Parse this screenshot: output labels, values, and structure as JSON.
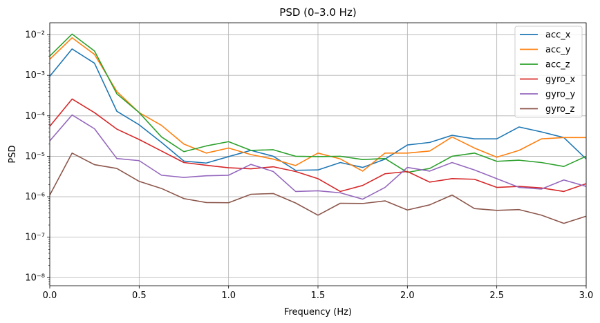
{
  "chart_data": {
    "type": "line",
    "title": "PSD (0–3.0 Hz)",
    "xlabel": "Frequency (Hz)",
    "ylabel": "PSD",
    "xlim": [
      0,
      3.0
    ],
    "ylim_log10": [
      -8.2,
      -1.7
    ],
    "yscale": "log",
    "grid": true,
    "legend_position": "top-right",
    "x_ticks": [
      {
        "value": 0.0,
        "label": "0.0"
      },
      {
        "value": 0.5,
        "label": "0.5"
      },
      {
        "value": 1.0,
        "label": "1.0"
      },
      {
        "value": 1.5,
        "label": "1.5"
      },
      {
        "value": 2.0,
        "label": "2.0"
      },
      {
        "value": 2.5,
        "label": "2.5"
      },
      {
        "value": 3.0,
        "label": "3.0"
      }
    ],
    "y_ticks": [
      {
        "exp": -8,
        "label": "10⁻⁸"
      },
      {
        "exp": -7,
        "label": "10⁻⁷"
      },
      {
        "exp": -6,
        "label": "10⁻⁶"
      },
      {
        "exp": -5,
        "label": "10⁻⁵"
      },
      {
        "exp": -4,
        "label": "10⁻⁴"
      },
      {
        "exp": -3,
        "label": "10⁻³"
      },
      {
        "exp": -2,
        "label": "10⁻²"
      }
    ],
    "x": [
      0,
      0.125,
      0.25,
      0.375,
      0.5,
      0.625,
      0.75,
      0.875,
      1.0,
      1.125,
      1.25,
      1.375,
      1.5,
      1.625,
      1.75,
      1.875,
      2.0,
      2.125,
      2.25,
      2.375,
      2.5,
      2.625,
      2.75,
      2.875,
      3.0
    ],
    "series": [
      {
        "name": "acc_x",
        "color": "#1f77b4",
        "values": [
          0.00095,
          0.0045,
          0.002,
          0.00013,
          6e-05,
          2.2e-05,
          7.6e-06,
          6.8e-06,
          9.8e-06,
          1.4e-05,
          1e-05,
          4.5e-06,
          4.6e-06,
          7e-06,
          5.3e-06,
          8.5e-06,
          1.9e-05,
          2.2e-05,
          3.3e-05,
          2.7e-05,
          2.7e-05,
          5.3e-05,
          4e-05,
          2.9e-05,
          8.6e-06
        ]
      },
      {
        "name": "acc_y",
        "color": "#ff7f0e",
        "values": [
          0.0025,
          0.0085,
          0.0033,
          0.0004,
          0.00012,
          5.8e-05,
          2e-05,
          1.2e-05,
          1.6e-05,
          1.1e-05,
          8.5e-06,
          5.9e-06,
          1.2e-05,
          8.6e-06,
          4.3e-06,
          1.2e-05,
          1.2e-05,
          1.35e-05,
          3e-05,
          1.6e-05,
          9.5e-06,
          1.4e-05,
          2.7e-05,
          2.9e-05,
          2.9e-05
        ]
      },
      {
        "name": "acc_z",
        "color": "#2ca02c",
        "values": [
          0.003,
          0.0105,
          0.004,
          0.00035,
          0.00012,
          3e-05,
          1.3e-05,
          1.8e-05,
          2.3e-05,
          1.4e-05,
          1.45e-05,
          1e-05,
          9.8e-06,
          1e-05,
          8.3e-06,
          8.8e-06,
          4e-06,
          5e-06,
          1e-05,
          1.2e-05,
          7.5e-06,
          8e-06,
          7e-06,
          5.6e-06,
          1e-05
        ]
      },
      {
        "name": "gyro_x",
        "color": "#d62728",
        "values": [
          5.5e-05,
          0.00026,
          0.00012,
          4.7e-05,
          2.6e-05,
          1.35e-05,
          7e-06,
          6e-06,
          5.2e-06,
          4.9e-06,
          5.5e-06,
          4.2e-06,
          2.8e-06,
          1.35e-06,
          1.9e-06,
          3.7e-06,
          4.2e-06,
          2.3e-06,
          2.8e-06,
          2.7e-06,
          1.7e-06,
          1.8e-06,
          1.65e-06,
          1.35e-06,
          2.1e-06
        ]
      },
      {
        "name": "gyro_y",
        "color": "#9467bd",
        "values": [
          2.4e-05,
          0.000105,
          4.8e-05,
          8.8e-06,
          7.8e-06,
          3.4e-06,
          3e-06,
          3.3e-06,
          3.4e-06,
          6.3e-06,
          4.2e-06,
          1.35e-06,
          1.4e-06,
          1.25e-06,
          8.7e-07,
          1.7e-06,
          5.3e-06,
          4.3e-06,
          7e-06,
          4.6e-06,
          2.8e-06,
          1.7e-06,
          1.55e-06,
          2.6e-06,
          1.8e-06
        ]
      },
      {
        "name": "gyro_z",
        "color": "#8c564b",
        "values": [
          1.1e-06,
          1.2e-05,
          6.2e-06,
          5e-06,
          2.4e-06,
          1.6e-06,
          9e-07,
          7.2e-07,
          7.1e-07,
          1.15e-06,
          1.2e-06,
          7e-07,
          3.5e-07,
          6.9e-07,
          6.8e-07,
          7.9e-07,
          4.7e-07,
          6.3e-07,
          1.1e-06,
          5.1e-07,
          4.6e-07,
          4.8e-07,
          3.5e-07,
          2.2e-07,
          3.3e-07
        ]
      }
    ]
  }
}
